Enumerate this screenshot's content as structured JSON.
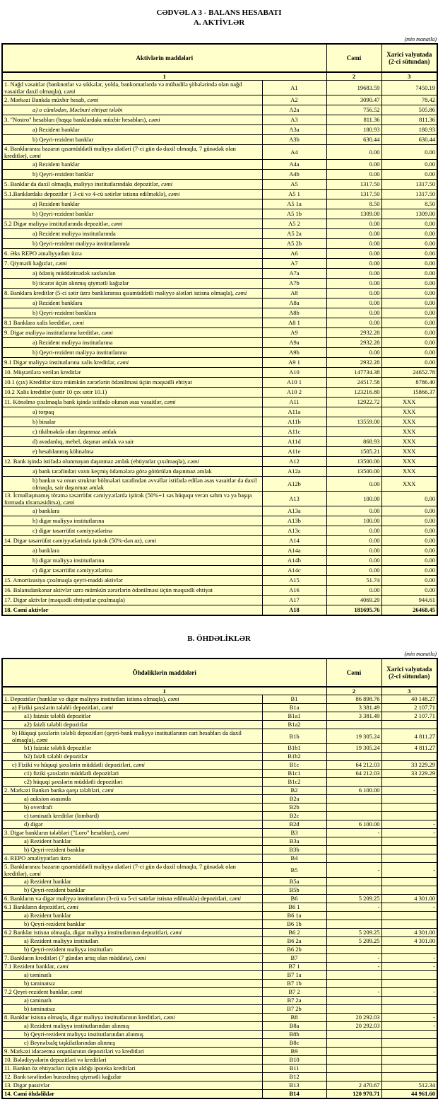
{
  "page": {
    "title_line1": "CƏDVƏL A 3 - BALANS HESABATI",
    "title_line2": "A. AKTİVLƏR",
    "unit_note": "(min manatla)",
    "section_b_title": "B. ÖHDƏLİKLƏR"
  },
  "table_a": {
    "header": {
      "items": "Aktivlərin  maddələri",
      "total": "Cəmi",
      "fx": "Xarici valyutada (2-ci sütundan)",
      "c1": "1",
      "c2": "2",
      "c3": "3"
    },
    "rows": [
      {
        "label": "1. Nağd vəsaitlər (banknotlar və sikkələr, yolda, bankomatlarda və mübadilə şöbələrində olan nağd vəsaitlər daxil olmaqla)",
        "it": ", cəmi",
        "code": "A1",
        "t": "19683.59",
        "f": "7450.19",
        "tw": 1,
        "fw": 1
      },
      {
        "label": "2. Mərkəzi Bankda müxbir hesab",
        "it": ", cəmi",
        "code": "A2",
        "t": "3090.47",
        "f": "78.42",
        "tw": 1,
        "fw": 1
      },
      {
        "label": "",
        "it": "a) o cümlədən, Məcburi ehtiyat tələbi",
        "code": "A2a",
        "t": "756.52",
        "f": "505.86",
        "tw": 1,
        "fw": 1,
        "i": 1
      },
      {
        "label": "3. \"Nostro\" hesabları (başqa banklardakı müxbir hesabları)",
        "it": ", cəmi",
        "code": "A3",
        "t": "811.36",
        "f": "811.36"
      },
      {
        "label": "a) Rezident banklar",
        "code": "A3a",
        "t": "180.93",
        "f": "180.93",
        "i": 1
      },
      {
        "label": "b) Qeyri-rezident banklar",
        "code": "A3b",
        "t": "630.44",
        "f": "630.44",
        "i": 1
      },
      {
        "label": "4. Banklararası bazarın qısamüddətli maliyyə alətləri (7-ci gün də daxil olmaqla, 7 günədək olan kreditlər)",
        "it": ", cəmi",
        "code": "A4",
        "t": "0.00",
        "f": "0.00"
      },
      {
        "label": "a) Rezident banklar",
        "code": "A4a",
        "t": "0.00",
        "f": "0.00",
        "i": 1
      },
      {
        "label": "b) Qeyri-rezident banklar",
        "code": "A4b",
        "t": "0.00",
        "f": "0.00",
        "i": 1
      },
      {
        "label": "5. Banklar da daxil olmaqla, maliyyə institutlarındakı depozitlər",
        "it": ", cəmi",
        "code": "A5",
        "t": "1317.50",
        "f": "1317.50"
      },
      {
        "label": "5.1.Banklardakı depozitlər ( 3-cü və 4-cü sətirlər istisna edilməklə)",
        "it": ", cəmi",
        "code": "A5 1",
        "t": "1317.50",
        "f": "1317.50"
      },
      {
        "label": "a) Rezident banklar",
        "code": "A5 1a",
        "t": "8.50",
        "f": "8.50",
        "i": 1
      },
      {
        "label": "b) Qeyri-rezident banklar",
        "code": "A5 1b",
        "t": "1309.00",
        "f": "1309.00",
        "i": 1
      },
      {
        "label": "5.2 Digər maliyyə institutlarında depozitlər",
        "it": ", cəmi",
        "code": "A5 2",
        "t": "0.00",
        "f": "0.00"
      },
      {
        "label": "a) Rezident maliyyə institutlarında",
        "code": "A5 2a",
        "t": "0.00",
        "f": "0.00",
        "i": 1
      },
      {
        "label": "b) Qeyri-rezident maliyyə institutlarında",
        "code": "A5 2b",
        "t": "0.00",
        "f": "0.00",
        "i": 1
      },
      {
        "label": "6. Əks REPO əməliyyatları üzrə",
        "code": "A6",
        "t": "0.00",
        "f": "0.00"
      },
      {
        "label": "7. Qiymətli kağızlar",
        "it": ", cəmi",
        "code": "A7",
        "t": "0.00",
        "f": "0.00"
      },
      {
        "label": "a) ödəniş müddətinədək saxlanılan",
        "code": "A7a",
        "t": "0.00",
        "f": "0.00",
        "i": 1
      },
      {
        "label": "b) ticarət üçün alınmış qiymətli kağızlar",
        "code": "A7b",
        "t": "0.00",
        "f": "0.00",
        "i": 1
      },
      {
        "label": "8. Banklara kreditlər (5-ci sətir üzrə banklararası qısamüddətli maliyyə alətləri istisna olmaqla)",
        "it": ", cəmi",
        "code": "A8",
        "t": "0.00",
        "f": "0.00"
      },
      {
        "label": "a) Rezident banklara",
        "code": "A8a",
        "t": "0.00",
        "f": "0.00",
        "i": 1
      },
      {
        "label": "b) Qeyri-rezident banklara",
        "code": "A8b",
        "t": "0.00",
        "f": "0.00",
        "i": 1
      },
      {
        "label": "8.1 Banklara xalis kreditlər",
        "it": ", cəmi",
        "code": "A8 1",
        "t": "0.00",
        "f": "0.00"
      },
      {
        "label": "9. Digər maliyyə institutlarına kreditlər",
        "it": ", cəmi",
        "code": "A9",
        "t": "2932.28",
        "f": "0.00"
      },
      {
        "label": "a) Rezident maliyyə institutlarına",
        "code": "A9a",
        "t": "2932.28",
        "f": "0.00",
        "i": 1
      },
      {
        "label": "b) Qeyri-rezident maliyyə institutlarına",
        "code": "A9b",
        "t": "0.00",
        "f": "0.00",
        "i": 1
      },
      {
        "label": "9.1 Digər maliyyə institutlarına xalis kreditlər",
        "it": ", cəmi",
        "code": "A9 1",
        "t": "2932.28",
        "f": "0.00"
      },
      {
        "label": "10. Müştərilərə verilən kreditlər",
        "code": "A10",
        "t": "147734.38",
        "f": "24652.78"
      },
      {
        "label": "10.1 (çıx) Kreditlər üzrə mümkün zərərlərin ödənilməsi üçün məqsədli ehtiyat",
        "code": "A10 1",
        "t": "24517.58",
        "f": "8786.40"
      },
      {
        "label": "10.2 Xalis kreditlər (sətir 10 çıx sətir 10.1)",
        "code": "A10 2",
        "t": "123216.80",
        "f": "15866.37"
      },
      {
        "label": "11. Könəlmə çıxılmaqla bank işində istifadə olunan əsas vəsaitlər",
        "it": ", cəmi",
        "code": "A11",
        "t": "12922.72",
        "f": "XXX"
      },
      {
        "label": "a) torpaq",
        "code": "A11a",
        "t": "",
        "f": "XXX",
        "tw": 1,
        "i": 1
      },
      {
        "label": "b) binalar",
        "code": "A11b",
        "t": "13559.00",
        "f": "XXX",
        "tw": 1,
        "i": 1
      },
      {
        "label": "c) tikilməkdə olan daşınmaz əmlak",
        "code": "A11c",
        "t": "",
        "f": "XXX",
        "tw": 1,
        "i": 1
      },
      {
        "label": "d) avadanlıq, mebel, daşınar əmlak və sair",
        "code": "A11d",
        "t": "868.93",
        "f": "XXX",
        "tw": 1,
        "i": 1
      },
      {
        "label": "e) hesablanmış köhnəlmə",
        "code": "A11e",
        "t": "1505.21",
        "f": "XXX",
        "tw": 1,
        "i": 1
      },
      {
        "label": "12. Bank işində istifadə olunmayan daşınmaz əmlak (ehtiyatlar çıxılmaqla)",
        "it": ", cəmi",
        "code": "A12",
        "t": "13500.00",
        "f": "XXX"
      },
      {
        "label": "a) bank tərəfindən vaxtı keçmiş ödəmələrə görə götürülən daşınmaz əmlak",
        "code": "A12a",
        "t": "13500.00",
        "f": "XXX",
        "i": 1
      },
      {
        "label": "b) bankın və onun struktur bölmələri tərəfindən əvvəllər istifadə edilən əsas vəsaitlər də daxil olmaqla, sair daşınmaz əmlak",
        "code": "A12b",
        "t": "0.00",
        "f": "XXX",
        "i": 1
      },
      {
        "label": "13. İcmallaşmamış törəmə təsərrüfat cəmiyyətlərdə iştirak (50%+1 səs hüququ verən səhm və ya başqa formada törəməsidirsə)",
        "it": ", cəmi",
        "code": "A13",
        "t": "100.00",
        "f": "0.00"
      },
      {
        "label": "a) banklara",
        "code": "A13a",
        "t": "0.00",
        "f": "0.00",
        "i": 1
      },
      {
        "label": "b) digər maliyyə institutlarına",
        "code": "A13b",
        "t": "100.00",
        "f": "0.00",
        "i": 1
      },
      {
        "label": "c) digər təsərrüfat cəmiyyətlərinə",
        "code": "A13c",
        "t": "0.00",
        "f": "0.00",
        "i": 1
      },
      {
        "label": "14. Digər təsərrüfat cəmiyyətlərində iştirak (50%-dən az)",
        "it": ", cəmi",
        "code": "A14",
        "t": "0.00",
        "f": "0.00"
      },
      {
        "label": "a) banklara",
        "code": "A14a",
        "t": "0.00",
        "f": "0.00",
        "i": 1
      },
      {
        "label": "b) digər maliyyə institutlarına",
        "code": "A14b",
        "t": "0.00",
        "f": "0.00",
        "i": 1
      },
      {
        "label": "c) digər təsərrüfat cəmiyyətlərinə",
        "code": "A14c",
        "t": "0.00",
        "f": "0.00",
        "i": 1
      },
      {
        "label": "15. Amortizasiya çıxılmaqla qeyri-maddi aktivlər",
        "code": "A15",
        "t": "51.74",
        "f": "0.00",
        "tw": 1
      },
      {
        "label": "16. Balansdankənar aktivlər uzrə mümkün zərərlərin ödənilməsi üçün məqsədli ehtiyat",
        "code": "A16",
        "t": "0.00",
        "f": "0.00"
      },
      {
        "label": "17. Digər aktivlər (məqsədli ehtiyatlar çıxılmaqla)",
        "code": "A17",
        "t": "4069.29",
        "f": "944.61"
      },
      {
        "label": "18. Cəmi aktivlər",
        "code": "A18",
        "t": "181695.76",
        "f": "26468.45",
        "b": 1
      }
    ]
  },
  "table_b": {
    "header": {
      "items": "Öhdəliklərin maddələri",
      "total": "Cəmi",
      "fx": "Xarici valyutada (2-ci sütundan)",
      "c1": "1",
      "c2": "2",
      "c3": "3"
    },
    "rows": [
      {
        "label": "1. Depozitlər (banklar və digər maliyyə institutları istisna olmaqla)",
        "it": ", cəmi",
        "code": "B1",
        "t": "86 898.76",
        "f": "40 148.27"
      },
      {
        "label": "a)  Fiziki şəxslərin tələbli depozitləri",
        "it": ", cəmi",
        "code": "B1a",
        "t": "3 381.49",
        "f": "2 107.71",
        "i": 1
      },
      {
        "label": "a1) faizsiz tələbli depozitlər",
        "code": "B1a1",
        "t": "3 381.49",
        "f": "2 107.71",
        "tw": 1,
        "fw": 1,
        "i": 2
      },
      {
        "label": "a2) faizli tələbli depozitlər",
        "code": "B1a2",
        "t": "",
        "f": "",
        "tw": 1,
        "fw": 1,
        "i": 2
      },
      {
        "label": "b) Hüquqi şəxslərin tələbli depozitləri (qeyri-bank maliyyə institutlarının cari hesabları da daxil olmaqla)",
        "it": ", cəmi",
        "code": "B1b",
        "t": "19 305.24",
        "f": "4 811.27",
        "i": 1
      },
      {
        "label": "b1) faizsiz tələbli depozitlər",
        "code": "B1b1",
        "t": "19 305.24",
        "f": "4 811.27",
        "tw": 1,
        "fw": 1,
        "i": 2
      },
      {
        "label": "b2) faizli tələbli depozitlər",
        "code": "B1b2",
        "t": "",
        "f": "",
        "tw": 1,
        "fw": 1,
        "i": 2
      },
      {
        "label": "c) Fiziki və hüquqi şəxslərin müddətli depozitləri",
        "it": ", cəmi",
        "code": "B1c",
        "t": "64 212.03",
        "f": "33 229.29",
        "i": 1
      },
      {
        "label": "c1) fiziki şəxslərin müddətli depozitləri",
        "code": "B1c1",
        "t": "64 212.03",
        "f": "33 229.29",
        "tw": 1,
        "fw": 1,
        "i": 2
      },
      {
        "label": "c2) hüquqi şəxslərin müddətli depozitləri",
        "code": "B1c2",
        "t": "",
        "f": "",
        "tw": 1,
        "fw": 1,
        "i": 2
      },
      {
        "label": "2. Mərkəzi Bankın banka qarşı tələbləri",
        "it": ", cəmi",
        "code": "B2",
        "t": "6 100.00",
        "f": "-"
      },
      {
        "label": "a) auksion əsasında",
        "code": "B2a",
        "t": "",
        "f": "",
        "tw": 1,
        "fw": 1,
        "i": 2
      },
      {
        "label": "b) overdraft",
        "code": "B2b",
        "t": "",
        "f": "",
        "tw": 1,
        "fw": 1,
        "i": 2
      },
      {
        "label": "c) təminatlı kreditlər (lombard)",
        "code": "B2c",
        "t": "",
        "f": "",
        "tw": 1,
        "fw": 1,
        "i": 2
      },
      {
        "label": "d) digər",
        "code": "B2d",
        "t": "6 100.00",
        "f": "-",
        "tw": 1,
        "fw": 1,
        "i": 2
      },
      {
        "label": "3. Digər bankların tələbləri (\"Loro\" hesabları)",
        "it": ", cəmi",
        "code": "B3",
        "t": "-",
        "f": "-"
      },
      {
        "label": "a) Rezident banklar",
        "code": "B3a",
        "t": "",
        "f": "",
        "tw": 1,
        "fw": 1,
        "i": 2
      },
      {
        "label": "b) Qeyri-rezident banklar",
        "code": "B3b",
        "t": "",
        "f": "",
        "tw": 1,
        "fw": 1,
        "i": 2
      },
      {
        "label": "4. REPO əməliyyatları  üzrə",
        "code": "B4",
        "t": "",
        "f": "",
        "tw": 1,
        "fw": 1
      },
      {
        "label": "5. Banklararası bazarın qısamüddətli maliyyə alətləri (7-ci gün də daxil olmaqla, 7 günədək olan kreditlər)",
        "it": ", cəmi",
        "code": "B5",
        "t": "-",
        "f": "-"
      },
      {
        "label": "a) Rezident banklar",
        "code": "B5a",
        "t": "",
        "f": "",
        "tw": 1,
        "fw": 1,
        "i": 2
      },
      {
        "label": "b) Qeyri-rezident banklar",
        "code": "B5b",
        "t": "",
        "f": "",
        "tw": 1,
        "fw": 1,
        "i": 2
      },
      {
        "label": "6. Bankların və digər maliyyə institutların (3-cü və 5-ci sətirlər istisna edilməklə) depozitləri",
        "it": ", cəmi",
        "code": "B6",
        "t": "5 209.25",
        "f": "4 301.00"
      },
      {
        "label": "6.1  Bankların depozitləri",
        "it": ", cəmi",
        "code": "B6 1",
        "t": "-",
        "f": "-"
      },
      {
        "label": "a) Rezident banklar",
        "code": "B6 1a",
        "t": "",
        "f": "",
        "tw": 1,
        "fw": 1,
        "i": 2
      },
      {
        "label": "b) Qeyri-rezident banklar",
        "code": "B6 1b",
        "t": "",
        "f": "",
        "tw": 1,
        "fw": 1,
        "i": 2
      },
      {
        "label": "6.2 Banklar istisna olmaqla, digər maliyyə institutlarının depozitləri",
        "it": ", cəmi",
        "code": "B6 2",
        "t": "5 209.25",
        "f": "4 301.00"
      },
      {
        "label": "a) Rezident maliyyə institutları",
        "code": "B6 2a",
        "t": "5 209.25",
        "f": "4 301.00",
        "tw": 1,
        "fw": 1,
        "i": 2
      },
      {
        "label": "b) Qeyri-rezident maliyyə institutları",
        "code": "B6 2b",
        "t": "",
        "f": "",
        "tw": 1,
        "fw": 1,
        "i": 2
      },
      {
        "label": "7. Bankların kreditləri (7 gündən artıq olan müddətə)",
        "it": ", cəmi",
        "code": "B7",
        "t": "-",
        "f": "-"
      },
      {
        "label": "7.1 Rezident banklar",
        "it": ", cəmi",
        "code": "B7 1",
        "t": "-",
        "f": "-"
      },
      {
        "label": "a) təminatlı",
        "code": "B7 1a",
        "t": "",
        "f": "",
        "tw": 1,
        "fw": 1,
        "i": 2
      },
      {
        "label": "b) təminatsız",
        "code": "B7 1b",
        "t": "",
        "f": "",
        "tw": 1,
        "fw": 1,
        "i": 2
      },
      {
        "label": "7.2 Qeyri-rezident banklar",
        "it": ", cəmi",
        "code": "B7 2",
        "t": "-",
        "f": "-"
      },
      {
        "label": "a) təminatlı",
        "code": "B7 2a",
        "t": "",
        "f": "",
        "tw": 1,
        "fw": 1,
        "i": 2
      },
      {
        "label": "b) təminatsız",
        "code": "B7 2b",
        "t": "",
        "f": "",
        "tw": 1,
        "fw": 1,
        "i": 2
      },
      {
        "label": "8. Banklar istisna olmaqla, digər maliyyə institutlarının kreditləri",
        "it": ", cəmi",
        "code": "B8",
        "t": "20 292.03",
        "f": "-"
      },
      {
        "label": "a) Rezident maliyyə institutlarından alınmış",
        "code": "B8a",
        "t": "20 292.03",
        "f": "-",
        "tw": 1,
        "fw": 1,
        "i": 2
      },
      {
        "label": "b) Qeyri-rezident maliyyə institutlarından alınmış",
        "code": "B8b",
        "t": "",
        "f": "",
        "tw": 1,
        "fw": 1,
        "i": 2
      },
      {
        "label": "c) Beynəlxalq təşkilatlarından alınmış",
        "code": "B8c",
        "t": "",
        "f": "",
        "tw": 1,
        "fw": 1,
        "i": 2
      },
      {
        "label": "9. Mərkəzi idarəetmə orqanlarının depozitləri və kreditləri",
        "code": "B9",
        "t": "",
        "f": "",
        "tw": 1,
        "fw": 1
      },
      {
        "label": "10. Bələdiyyələrin depozitləri və kreditləri",
        "code": "B10",
        "t": "",
        "f": "",
        "tw": 1,
        "fw": 1
      },
      {
        "label": "11. Bankın öz ehtiyacları üçün aldığı ipoteka kreditləri",
        "code": "B11",
        "t": "",
        "f": "",
        "tw": 1,
        "fw": 1
      },
      {
        "label": "12. Bank tərəfindən buraxılmış qiymətli kağızlar",
        "code": "B12",
        "t": "",
        "f": "",
        "tw": 1,
        "fw": 1
      },
      {
        "label": "13. Digər passivlər",
        "code": "B13",
        "t": "2 470.67",
        "f": "512.34"
      },
      {
        "label": "14. Cəmi öhdəliklər",
        "code": "B14",
        "t": "120 970.71",
        "f": "44 961.60",
        "b": 1
      }
    ]
  }
}
